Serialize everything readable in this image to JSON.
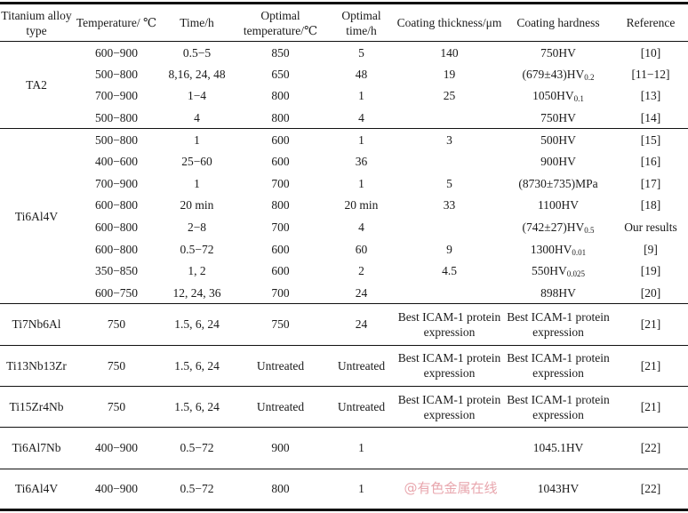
{
  "headers": [
    "Titanium alloy type",
    "Temperature/ ℃",
    "Time/h",
    "Optimal temperature/℃",
    "Optimal time/h",
    "Coating thickness/μm",
    "Coating hardness",
    "Reference"
  ],
  "groups": [
    {
      "alloy": "TA2",
      "rows": [
        [
          "600−900",
          "0.5−5",
          "850",
          "5",
          "140",
          {
            "main": "750HV",
            "sub": ""
          },
          "[10]"
        ],
        [
          "500−800",
          "8,16, 24, 48",
          "650",
          "48",
          "19",
          {
            "main": "(679±43)HV",
            "sub": "0.2"
          },
          "[11−12]"
        ],
        [
          "700−900",
          "1−4",
          "800",
          "1",
          "25",
          {
            "main": "1050HV",
            "sub": "0.1"
          },
          "[13]"
        ],
        [
          "500−800",
          "4",
          "800",
          "4",
          "",
          {
            "main": "750HV",
            "sub": ""
          },
          "[14]"
        ]
      ]
    },
    {
      "alloy": "Ti6Al4V",
      "rows": [
        [
          "500−800",
          "1",
          "600",
          "1",
          "3",
          {
            "main": "500HV",
            "sub": ""
          },
          "[15]"
        ],
        [
          "400−600",
          "25−60",
          "600",
          "36",
          "",
          {
            "main": "900HV",
            "sub": ""
          },
          "[16]"
        ],
        [
          "700−900",
          "1",
          "700",
          "1",
          "5",
          {
            "main": "(8730±735)MPa",
            "sub": ""
          },
          "[17]"
        ],
        [
          "600−800",
          "20 min",
          "800",
          "20 min",
          "33",
          {
            "main": "1100HV",
            "sub": ""
          },
          "[18]"
        ],
        [
          "600−800",
          "2−8",
          "700",
          "4",
          "",
          {
            "main": "(742±27)HV",
            "sub": "0.5"
          },
          "Our results"
        ],
        [
          "600−800",
          "0.5−72",
          "600",
          "60",
          "9",
          {
            "main": "1300HV",
            "sub": "0.01"
          },
          "[9]"
        ],
        [
          "350−850",
          "1, 2",
          "600",
          "2",
          "4.5",
          {
            "main": "550HV",
            "sub": "0.025"
          },
          "[19]"
        ],
        [
          "600−750",
          "12, 24, 36",
          "700",
          "24",
          "",
          {
            "main": "898HV",
            "sub": ""
          },
          "[20]"
        ]
      ]
    }
  ],
  "singles": [
    [
      "Ti7Nb6Al",
      "750",
      "1.5, 6, 24",
      "750",
      "24",
      "Best ICAM-1 protein expression",
      "Best ICAM-1 protein expression",
      "[21]"
    ],
    [
      "Ti13Nb13Zr",
      "750",
      "1.5, 6, 24",
      "Untreated",
      "Untreated",
      "Best ICAM-1 protein expression",
      "Best ICAM-1 protein expression",
      "[21]"
    ],
    [
      "Ti15Zr4Nb",
      "750",
      "1.5, 6, 24",
      "Untreated",
      "Untreated",
      "Best ICAM-1 protein expression",
      "Best ICAM-1 protein expression",
      "[21]"
    ],
    [
      "Ti6Al7Nb",
      "400−900",
      "0.5−72",
      "900",
      "1",
      "",
      "1045.1HV",
      "[22]"
    ],
    [
      "Ti6Al4V",
      "400−900",
      "0.5−72",
      "800",
      "1",
      "",
      "1043HV",
      "[22]"
    ]
  ],
  "watermark": "@有色金属在线"
}
